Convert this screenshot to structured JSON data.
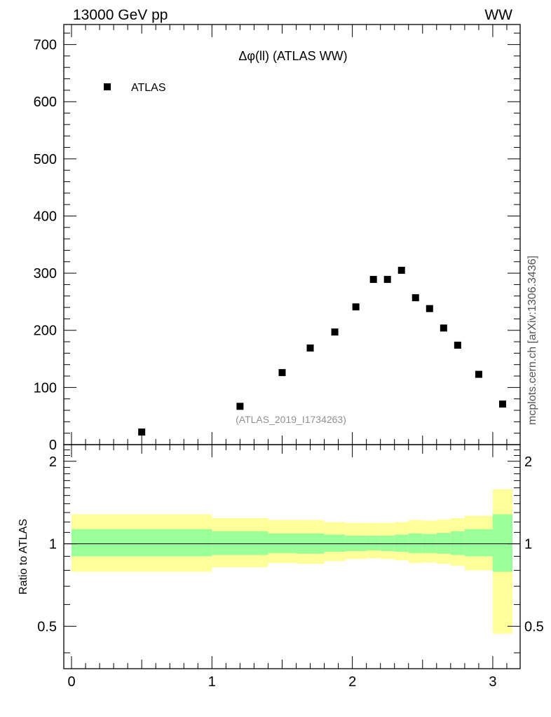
{
  "header": {
    "left_label": "13000 GeV pp",
    "right_label": "WW"
  },
  "side_label": "mcplots.cern.ch [arXiv:1306.3436]",
  "chart_data": {
    "type": "scatter",
    "title": "Δφ(ll) (ATLAS WW)",
    "reference": "(ATLAS_2019_I1734263)",
    "legend": {
      "entries": [
        "ATLAS"
      ],
      "placement": "top-left"
    },
    "series": [
      {
        "name": "ATLAS",
        "marker": "square",
        "color": "#000000",
        "x": [
          0.5,
          1.2,
          1.5,
          1.7,
          1.875,
          2.025,
          2.15,
          2.25,
          2.35,
          2.45,
          2.55,
          2.65,
          2.75,
          2.9,
          3.07
        ],
        "y": [
          22,
          67,
          126,
          169,
          197,
          241,
          289,
          289,
          305,
          257,
          238,
          204,
          174,
          123,
          71
        ]
      }
    ],
    "xlim": [
      -0.055,
      3.195
    ],
    "ylim": [
      0,
      735
    ],
    "yticks": [
      0,
      100,
      200,
      300,
      400,
      500,
      600,
      700
    ],
    "ratio_panel": {
      "ylabel": "Ratio to ATLAS",
      "ylim": [
        0.35,
        2.3
      ],
      "yticks": [
        0.5,
        1,
        2
      ],
      "xticks": [
        0,
        1,
        2,
        3
      ],
      "reference_line": 1,
      "band_colors": {
        "outer": "#ffff99",
        "inner": "#99ff99"
      },
      "bins": [
        {
          "x0": 0.0,
          "x1": 1.0,
          "outer": [
            0.79,
            1.28
          ],
          "inner": [
            0.9,
            1.13
          ]
        },
        {
          "x0": 1.0,
          "x1": 1.4,
          "outer": [
            0.82,
            1.24
          ],
          "inner": [
            0.91,
            1.11
          ]
        },
        {
          "x0": 1.4,
          "x1": 1.6,
          "outer": [
            0.85,
            1.22
          ],
          "inner": [
            0.925,
            1.09
          ]
        },
        {
          "x0": 1.6,
          "x1": 1.8,
          "outer": [
            0.845,
            1.22
          ],
          "inner": [
            0.92,
            1.09
          ]
        },
        {
          "x0": 1.8,
          "x1": 1.95,
          "outer": [
            0.865,
            1.2
          ],
          "inner": [
            0.935,
            1.08
          ]
        },
        {
          "x0": 1.95,
          "x1": 2.1,
          "outer": [
            0.88,
            1.19
          ],
          "inner": [
            0.94,
            1.07
          ]
        },
        {
          "x0": 2.1,
          "x1": 2.2,
          "outer": [
            0.885,
            1.19
          ],
          "inner": [
            0.945,
            1.07
          ]
        },
        {
          "x0": 2.2,
          "x1": 2.3,
          "outer": [
            0.88,
            1.19
          ],
          "inner": [
            0.94,
            1.07
          ]
        },
        {
          "x0": 2.3,
          "x1": 2.4,
          "outer": [
            0.87,
            1.2
          ],
          "inner": [
            0.935,
            1.08
          ]
        },
        {
          "x0": 2.4,
          "x1": 2.5,
          "outer": [
            0.85,
            1.22
          ],
          "inner": [
            0.925,
            1.09
          ]
        },
        {
          "x0": 2.5,
          "x1": 2.6,
          "outer": [
            0.855,
            1.215
          ],
          "inner": [
            0.925,
            1.085
          ]
        },
        {
          "x0": 2.6,
          "x1": 2.7,
          "outer": [
            0.845,
            1.225
          ],
          "inner": [
            0.92,
            1.095
          ]
        },
        {
          "x0": 2.7,
          "x1": 2.8,
          "outer": [
            0.83,
            1.24
          ],
          "inner": [
            0.91,
            1.11
          ]
        },
        {
          "x0": 2.8,
          "x1": 3.0,
          "outer": [
            0.8,
            1.265
          ],
          "inner": [
            0.9,
            1.13
          ]
        },
        {
          "x0": 3.0,
          "x1": 3.14,
          "outer": [
            0.47,
            1.58
          ],
          "inner": [
            0.79,
            1.28
          ]
        }
      ]
    }
  }
}
